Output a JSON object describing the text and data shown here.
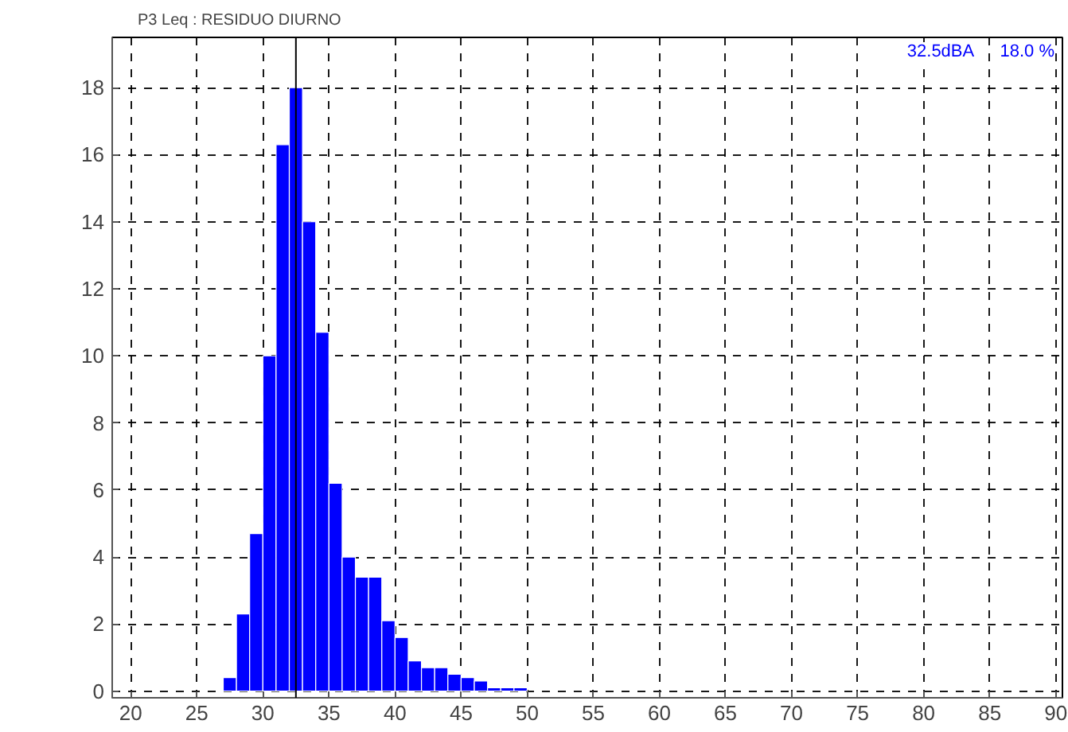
{
  "chart_data": {
    "type": "histogram",
    "title": "P3  Leq : RESIDUO DIURNO",
    "bins": [
      27,
      28,
      29,
      30,
      31,
      32,
      33,
      34,
      35,
      36,
      37,
      38,
      39,
      40,
      41,
      42,
      43,
      44,
      45,
      46,
      47,
      48,
      49,
      50
    ],
    "values": [
      0.4,
      2.3,
      4.7,
      10.0,
      16.3,
      18.0,
      14.0,
      10.7,
      6.2,
      4.0,
      3.4,
      3.4,
      2.1,
      1.6,
      0.9,
      0.7,
      0.7,
      0.5,
      0.4,
      0.3,
      0.1,
      0.1,
      0.1
    ],
    "color": "#0000ff",
    "xlim": [
      18.6,
      90.5
    ],
    "xticks": [
      20,
      25,
      30,
      35,
      40,
      45,
      50,
      55,
      60,
      65,
      70,
      75,
      80,
      85,
      90
    ],
    "ylim": [
      -0.2,
      19.5
    ],
    "yticks": [
      0,
      2,
      4,
      6,
      8,
      10,
      12,
      14,
      16,
      18
    ],
    "grid": true,
    "ref_lines": [
      {
        "axis": "x",
        "value": 32.5,
        "color": "#000000"
      }
    ],
    "annotations": [
      "32.5dBA",
      "18.0 %"
    ]
  }
}
